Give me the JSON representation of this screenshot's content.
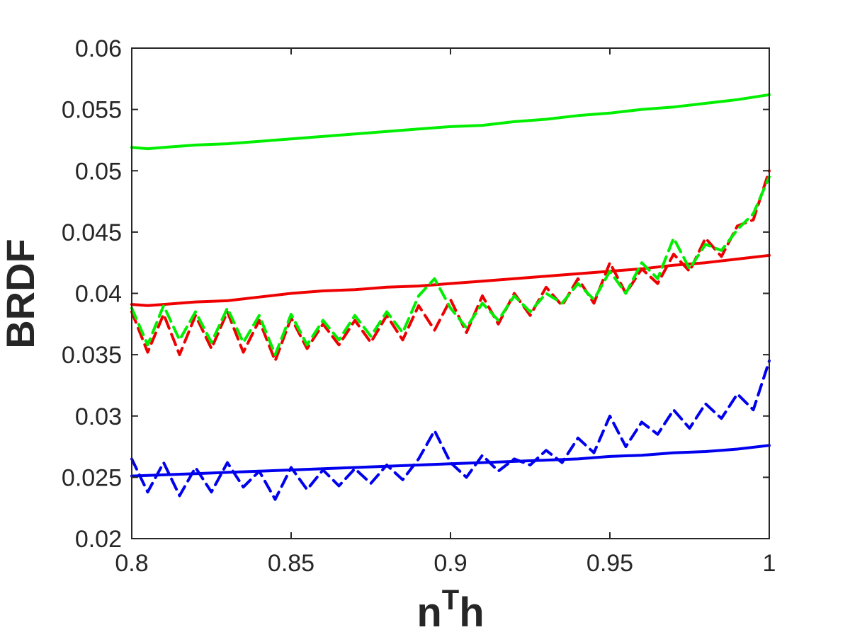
{
  "chart_data": {
    "type": "line",
    "title": "",
    "xlabel": {
      "base": "n",
      "sup": "T",
      "tail": "h"
    },
    "ylabel": "BRDF",
    "xlim": [
      0.8,
      1.0
    ],
    "ylim": [
      0.02,
      0.06
    ],
    "xticks": [
      0.8,
      0.85,
      0.9,
      0.95,
      1.0
    ],
    "xtick_labels": [
      "0.8",
      "0.85",
      "0.9",
      "0.95",
      "1"
    ],
    "yticks": [
      0.02,
      0.025,
      0.03,
      0.035,
      0.04,
      0.045,
      0.05,
      0.055,
      0.06
    ],
    "ytick_labels": [
      "0.02",
      "0.025",
      "0.03",
      "0.035",
      "0.04",
      "0.045",
      "0.05",
      "0.055",
      "0.06"
    ],
    "grid": false,
    "legend": "none",
    "series": [
      {
        "color": "#00ee00",
        "style": "solid",
        "x": [
          0.8,
          0.805,
          0.81,
          0.82,
          0.83,
          0.84,
          0.85,
          0.86,
          0.87,
          0.88,
          0.89,
          0.9,
          0.91,
          0.92,
          0.93,
          0.94,
          0.95,
          0.96,
          0.97,
          0.98,
          0.99,
          1.0
        ],
        "y": [
          0.0519,
          0.0518,
          0.0519,
          0.0521,
          0.0522,
          0.0524,
          0.0526,
          0.0528,
          0.053,
          0.0532,
          0.0534,
          0.0536,
          0.0537,
          0.054,
          0.0542,
          0.0545,
          0.0547,
          0.055,
          0.0552,
          0.0555,
          0.0558,
          0.0562
        ]
      },
      {
        "color": "#ee0000",
        "style": "solid",
        "x": [
          0.8,
          0.805,
          0.81,
          0.82,
          0.83,
          0.84,
          0.85,
          0.86,
          0.87,
          0.88,
          0.89,
          0.9,
          0.91,
          0.92,
          0.93,
          0.94,
          0.95,
          0.96,
          0.97,
          0.98,
          0.99,
          1.0
        ],
        "y": [
          0.0391,
          0.039,
          0.0391,
          0.0393,
          0.0394,
          0.0397,
          0.04,
          0.0402,
          0.0403,
          0.0405,
          0.0406,
          0.0408,
          0.041,
          0.0412,
          0.0414,
          0.0416,
          0.0418,
          0.042,
          0.0423,
          0.0425,
          0.0428,
          0.0431
        ]
      },
      {
        "color": "#0000ee",
        "style": "solid",
        "x": [
          0.8,
          0.81,
          0.82,
          0.83,
          0.84,
          0.85,
          0.86,
          0.87,
          0.88,
          0.89,
          0.9,
          0.91,
          0.92,
          0.93,
          0.94,
          0.95,
          0.96,
          0.97,
          0.98,
          0.99,
          1.0
        ],
        "y": [
          0.0251,
          0.0252,
          0.0253,
          0.0254,
          0.0255,
          0.0256,
          0.0257,
          0.0258,
          0.0259,
          0.026,
          0.0261,
          0.0262,
          0.0263,
          0.0264,
          0.0265,
          0.0267,
          0.0268,
          0.027,
          0.0271,
          0.0273,
          0.0276
        ]
      },
      {
        "color": "#ee0000",
        "style": "dashed",
        "x": [
          0.8,
          0.805,
          0.81,
          0.815,
          0.82,
          0.825,
          0.83,
          0.835,
          0.84,
          0.845,
          0.85,
          0.855,
          0.86,
          0.865,
          0.87,
          0.875,
          0.88,
          0.885,
          0.89,
          0.895,
          0.9,
          0.905,
          0.91,
          0.915,
          0.92,
          0.925,
          0.93,
          0.935,
          0.94,
          0.945,
          0.95,
          0.955,
          0.96,
          0.965,
          0.97,
          0.975,
          0.98,
          0.985,
          0.99,
          0.995,
          1.0
        ],
        "y": [
          0.0385,
          0.0352,
          0.0383,
          0.035,
          0.0382,
          0.0355,
          0.0385,
          0.0352,
          0.0378,
          0.0345,
          0.038,
          0.0355,
          0.0375,
          0.0358,
          0.0378,
          0.036,
          0.0382,
          0.0362,
          0.039,
          0.037,
          0.0395,
          0.0368,
          0.0398,
          0.0375,
          0.04,
          0.0382,
          0.0405,
          0.039,
          0.0412,
          0.0392,
          0.0425,
          0.04,
          0.042,
          0.0408,
          0.0432,
          0.0418,
          0.0445,
          0.043,
          0.0455,
          0.046,
          0.05
        ]
      },
      {
        "color": "#00ee00",
        "style": "dashed",
        "x": [
          0.8,
          0.805,
          0.81,
          0.815,
          0.82,
          0.825,
          0.83,
          0.835,
          0.84,
          0.845,
          0.85,
          0.855,
          0.86,
          0.865,
          0.87,
          0.875,
          0.88,
          0.885,
          0.89,
          0.895,
          0.9,
          0.905,
          0.91,
          0.915,
          0.92,
          0.925,
          0.93,
          0.935,
          0.94,
          0.945,
          0.95,
          0.955,
          0.96,
          0.965,
          0.97,
          0.975,
          0.98,
          0.985,
          0.99,
          0.995,
          1.0
        ],
        "y": [
          0.0388,
          0.0358,
          0.039,
          0.0362,
          0.0385,
          0.036,
          0.0388,
          0.036,
          0.0382,
          0.035,
          0.0383,
          0.0358,
          0.0378,
          0.0362,
          0.0382,
          0.0365,
          0.0385,
          0.0368,
          0.0398,
          0.0412,
          0.0388,
          0.0372,
          0.0392,
          0.0378,
          0.0398,
          0.0385,
          0.04,
          0.0392,
          0.0408,
          0.0395,
          0.0418,
          0.04,
          0.0425,
          0.0412,
          0.0445,
          0.042,
          0.044,
          0.0435,
          0.0452,
          0.0465,
          0.0495
        ]
      },
      {
        "color": "#0000ee",
        "style": "dashed",
        "x": [
          0.8,
          0.805,
          0.81,
          0.815,
          0.82,
          0.825,
          0.83,
          0.835,
          0.84,
          0.845,
          0.85,
          0.855,
          0.86,
          0.865,
          0.87,
          0.875,
          0.88,
          0.885,
          0.89,
          0.895,
          0.9,
          0.905,
          0.91,
          0.915,
          0.92,
          0.925,
          0.93,
          0.935,
          0.94,
          0.945,
          0.95,
          0.955,
          0.96,
          0.965,
          0.97,
          0.975,
          0.98,
          0.985,
          0.99,
          0.995,
          1.0
        ],
        "y": [
          0.0265,
          0.0238,
          0.0262,
          0.0235,
          0.0258,
          0.0238,
          0.0262,
          0.0242,
          0.0255,
          0.0232,
          0.0258,
          0.024,
          0.0256,
          0.0243,
          0.0257,
          0.0245,
          0.026,
          0.0248,
          0.0265,
          0.0288,
          0.0262,
          0.025,
          0.0268,
          0.0255,
          0.0265,
          0.026,
          0.0272,
          0.0262,
          0.0282,
          0.027,
          0.03,
          0.0275,
          0.0295,
          0.0285,
          0.0305,
          0.029,
          0.031,
          0.0298,
          0.0318,
          0.0305,
          0.0345
        ]
      }
    ]
  }
}
